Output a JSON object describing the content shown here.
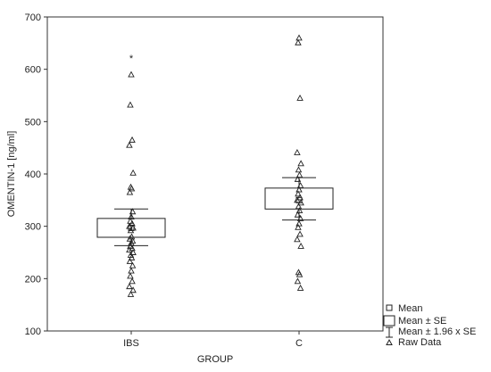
{
  "chart_data": {
    "type": "box",
    "xlabel": "GROUP",
    "ylabel": "OMENTIN-1 [ng/ml]",
    "ylim": [
      100,
      700
    ],
    "yticks": [
      100,
      200,
      300,
      400,
      500,
      600,
      700
    ],
    "categories": [
      "IBS",
      "C"
    ],
    "groups": [
      {
        "name": "IBS",
        "mean": 297,
        "se_low": 279,
        "se_high": 315,
        "ci_low": 263,
        "ci_high": 333,
        "raw_data": [
          590,
          532,
          465,
          455,
          402,
          375,
          372,
          365,
          328,
          318,
          310,
          305,
          300,
          297,
          292,
          280,
          276,
          272,
          268,
          262,
          258,
          255,
          250,
          245,
          240,
          233,
          225,
          215,
          205,
          195,
          185,
          178,
          170
        ],
        "outliers": [
          625
        ]
      },
      {
        "name": "C",
        "mean": 350,
        "se_low": 333,
        "se_high": 373,
        "ci_low": 312,
        "ci_high": 393,
        "raw_data": [
          660,
          651,
          545,
          441,
          420,
          408,
          398,
          390,
          378,
          370,
          362,
          355,
          350,
          345,
          338,
          330,
          322,
          315,
          305,
          298,
          285,
          275,
          262,
          212,
          208,
          195,
          182
        ],
        "outliers": []
      }
    ],
    "legend": {
      "position": "bottom-right",
      "items": [
        "Mean",
        "Mean ± SE",
        "Mean ± 1.96 x SE",
        "Raw Data"
      ]
    },
    "grid": false
  }
}
